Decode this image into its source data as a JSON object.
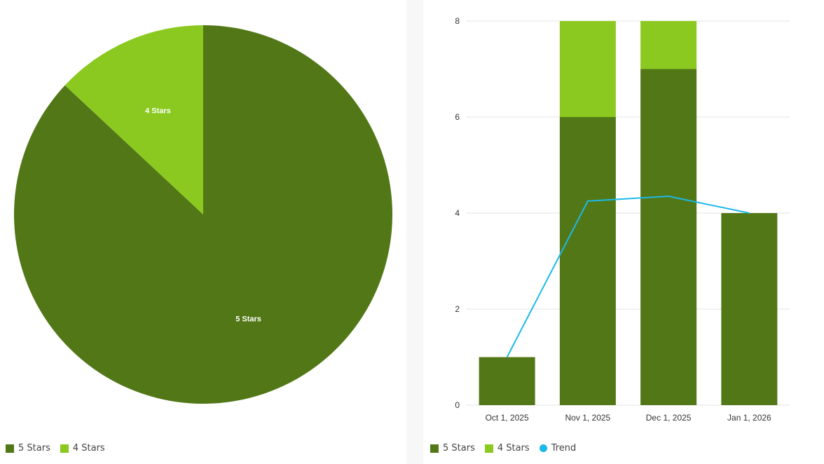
{
  "colors": {
    "five_stars": "#527716",
    "four_stars": "#8bc920",
    "trend": "#1cb8e8",
    "grid": "#e3e3e3"
  },
  "chart_data": [
    {
      "type": "pie",
      "slices": [
        {
          "label": "5 Stars",
          "value": 20
        },
        {
          "label": "4 Stars",
          "value": 3
        }
      ],
      "legend": [
        "5 Stars",
        "4 Stars"
      ],
      "legend_position": "bottom-left"
    },
    {
      "type": "bar",
      "stacked": true,
      "categories": [
        "Oct 1, 2025",
        "Nov 1, 2025",
        "Dec 1, 2025",
        "Jan 1, 2026"
      ],
      "series": [
        {
          "name": "5 Stars",
          "values": [
            1,
            6,
            7,
            4
          ]
        },
        {
          "name": "4 Stars",
          "values": [
            0,
            2,
            1,
            0
          ]
        }
      ],
      "trend": {
        "name": "Trend",
        "values": [
          1,
          4.25,
          4.35,
          4
        ]
      },
      "ylim": [
        0,
        8
      ],
      "yticks": [
        0,
        2,
        4,
        6,
        8
      ],
      "grid": true,
      "legend": [
        "5 Stars",
        "4 Stars",
        "Trend"
      ],
      "legend_position": "bottom-left"
    }
  ]
}
